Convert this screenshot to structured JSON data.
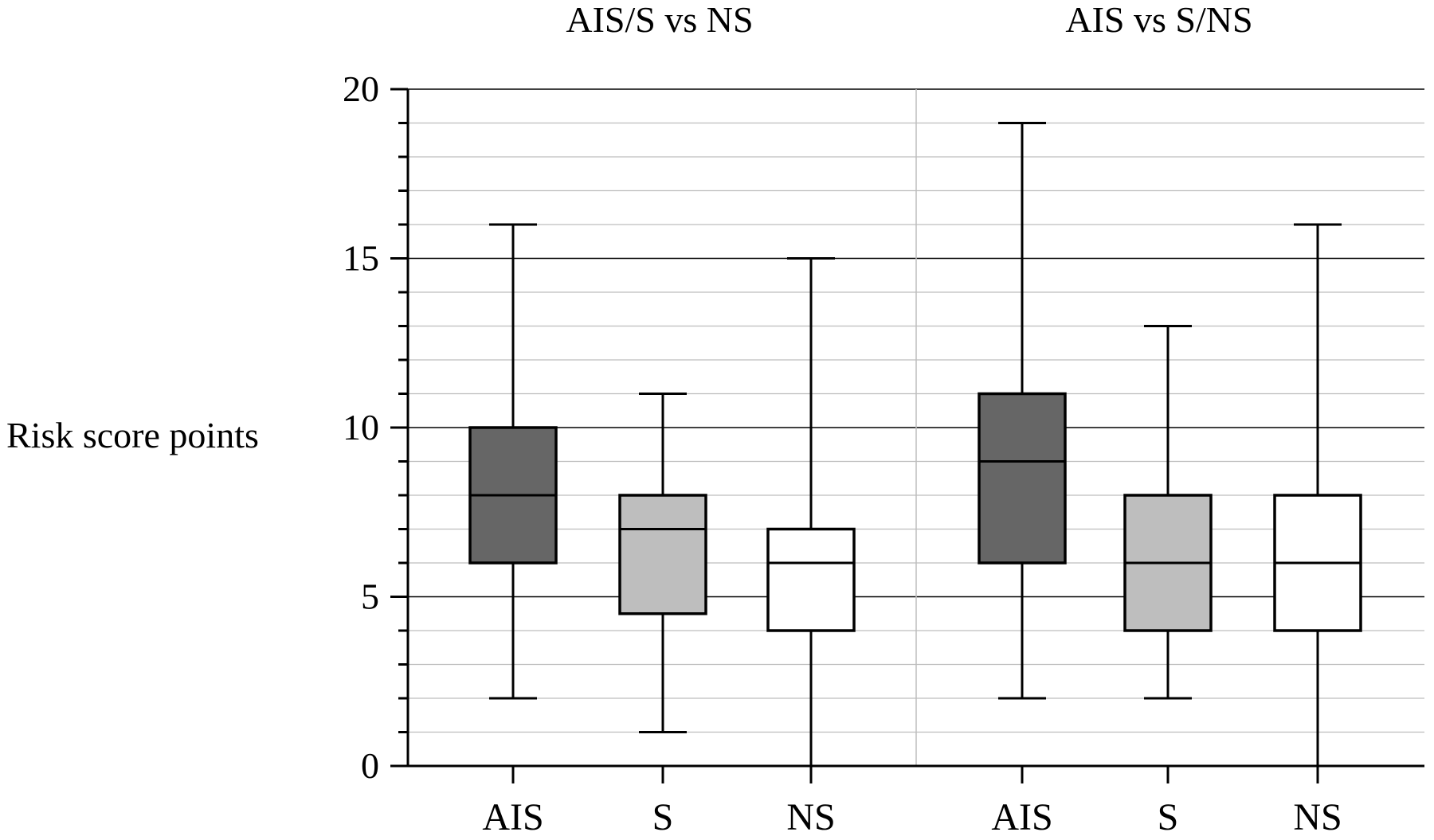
{
  "chart_data": {
    "type": "boxplot",
    "ylabel": "Risk score points",
    "ylim": [
      0,
      20
    ],
    "yticks": [
      "0",
      "5",
      "10",
      "15",
      "20"
    ],
    "grid": true,
    "panels": [
      {
        "title": "AIS/S vs NS",
        "categories": [
          "AIS",
          "S",
          "NS"
        ],
        "boxes": [
          {
            "min": 2,
            "q1": 6,
            "median": 8,
            "q3": 10,
            "max": 16
          },
          {
            "min": 1,
            "q1": 4.5,
            "median": 7,
            "q3": 8,
            "max": 11
          },
          {
            "min": 0,
            "q1": 4,
            "median": 6,
            "q3": 7,
            "max": 15
          }
        ]
      },
      {
        "title": "AIS vs S/NS",
        "categories": [
          "AIS",
          "S",
          "NS"
        ],
        "boxes": [
          {
            "min": 2,
            "q1": 6,
            "median": 9,
            "q3": 11,
            "max": 19
          },
          {
            "min": 2,
            "q1": 4,
            "median": 6,
            "q3": 8,
            "max": 13
          },
          {
            "min": 0,
            "q1": 4,
            "median": 6,
            "q3": 8,
            "max": 16
          }
        ]
      }
    ],
    "colors": {
      "AIS": "#666666",
      "S": "#bebebe",
      "NS": "#ffffff"
    }
  }
}
